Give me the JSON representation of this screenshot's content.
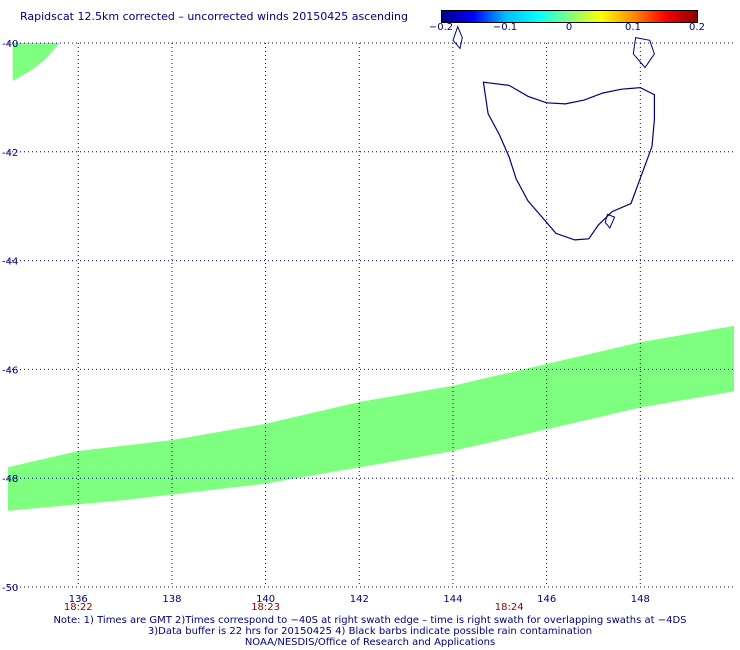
{
  "title": "Rapidscat 12.5km corrected – uncorrected winds 20150425 ascending",
  "colorbar": {
    "labels": [
      {
        "text": "−0.2",
        "value": -0.2
      },
      {
        "text": "−0.1",
        "value": -0.1
      },
      {
        "text": "0",
        "value": 0
      },
      {
        "text": "0.1",
        "value": 0.1
      },
      {
        "text": "0.2",
        "value": 0.2
      }
    ],
    "colors": [
      "#00008b",
      "#0000ff",
      "#00bfff",
      "#00ffff",
      "#7fff7f",
      "#ffff00",
      "#ff8c00",
      "#ff0000",
      "#8b0000"
    ]
  },
  "axes": {
    "lon_range": [
      134.5,
      150
    ],
    "lat_range": [
      -50,
      -40
    ],
    "lat_ticks": [
      {
        "value": -40,
        "text": "-40"
      },
      {
        "value": -42,
        "text": "-42"
      },
      {
        "value": -44,
        "text": "-44"
      },
      {
        "value": -46,
        "text": "-46"
      },
      {
        "value": -48,
        "text": "-48"
      },
      {
        "value": -50,
        "text": "-50"
      }
    ],
    "lon_ticks": [
      {
        "value": 136,
        "text": "136"
      },
      {
        "value": 138,
        "text": "138"
      },
      {
        "value": 140,
        "text": "140"
      },
      {
        "value": 142,
        "text": "142"
      },
      {
        "value": 144,
        "text": "144"
      },
      {
        "value": 146,
        "text": "146"
      },
      {
        "value": 148,
        "text": "148"
      }
    ],
    "grid": true
  },
  "time_labels": [
    {
      "lon": 136,
      "text": "18:22"
    },
    {
      "lon": 140,
      "text": "18:23"
    },
    {
      "lon": 145.2,
      "text": "18:24"
    }
  ],
  "swath": {
    "color": "#7fff7f",
    "main_band": {
      "lower_edge": [
        [
          134.5,
          -48.6
        ],
        [
          137,
          -48.4
        ],
        [
          140,
          -48.1
        ],
        [
          142,
          -47.8
        ],
        [
          144,
          -47.5
        ],
        [
          146,
          -47.1
        ],
        [
          148,
          -46.7
        ],
        [
          150,
          -46.4
        ]
      ],
      "upper_edge": [
        [
          150,
          -45.2
        ],
        [
          148,
          -45.5
        ],
        [
          146,
          -45.9
        ],
        [
          144,
          -46.3
        ],
        [
          142,
          -46.6
        ],
        [
          140,
          -47.0
        ],
        [
          138,
          -47.3
        ],
        [
          136,
          -47.5
        ],
        [
          134.5,
          -47.8
        ]
      ]
    },
    "corner_patch": [
      [
        134.6,
        -40.0
      ],
      [
        135.6,
        -40.0
      ],
      [
        135.3,
        -40.3
      ],
      [
        135.0,
        -40.5
      ],
      [
        134.6,
        -40.7
      ]
    ]
  },
  "coastline": {
    "color": "#000080",
    "tasmania": [
      [
        144.65,
        -40.72
      ],
      [
        145.2,
        -40.78
      ],
      [
        145.6,
        -40.98
      ],
      [
        146.0,
        -41.1
      ],
      [
        146.4,
        -41.12
      ],
      [
        146.8,
        -41.05
      ],
      [
        147.2,
        -40.92
      ],
      [
        147.6,
        -40.85
      ],
      [
        148.0,
        -40.82
      ],
      [
        148.3,
        -40.95
      ],
      [
        148.3,
        -41.4
      ],
      [
        148.25,
        -41.9
      ],
      [
        148.1,
        -42.25
      ],
      [
        147.95,
        -42.6
      ],
      [
        147.8,
        -42.95
      ],
      [
        147.4,
        -43.1
      ],
      [
        147.1,
        -43.35
      ],
      [
        146.9,
        -43.6
      ],
      [
        146.6,
        -43.62
      ],
      [
        146.2,
        -43.5
      ],
      [
        145.9,
        -43.2
      ],
      [
        145.6,
        -42.9
      ],
      [
        145.35,
        -42.5
      ],
      [
        145.2,
        -42.1
      ],
      [
        145.0,
        -41.7
      ],
      [
        144.75,
        -41.3
      ],
      [
        144.65,
        -40.72
      ]
    ],
    "islands": [
      [
        [
          144.1,
          -39.7
        ],
        [
          144.2,
          -39.9
        ],
        [
          144.15,
          -40.1
        ],
        [
          144.0,
          -39.95
        ],
        [
          144.1,
          -39.7
        ]
      ],
      [
        [
          147.9,
          -39.9
        ],
        [
          148.2,
          -39.95
        ],
        [
          148.3,
          -40.2
        ],
        [
          148.1,
          -40.45
        ],
        [
          147.85,
          -40.2
        ],
        [
          147.9,
          -39.9
        ]
      ],
      [
        [
          147.3,
          -43.15
        ],
        [
          147.45,
          -43.2
        ],
        [
          147.35,
          -43.4
        ],
        [
          147.25,
          -43.3
        ],
        [
          147.3,
          -43.15
        ]
      ]
    ]
  },
  "notes": [
    "Note: 1) Times are GMT 2)Times correspond to −40S at right swath edge – time is right swath for overlapping swaths at −4DS",
    "3)Data buffer is 22 hrs for 20150425 4) Black barbs indicate possible rain contamination",
    "NOAA/NESDIS/Office of Research and Applications"
  ]
}
